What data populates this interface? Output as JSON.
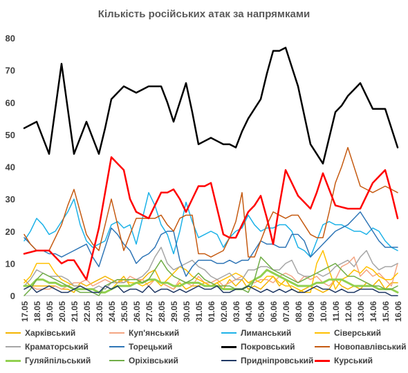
{
  "chart_data": {
    "type": "line",
    "title": "Кількість російських атак за напрямками",
    "ylim": [
      0,
      80
    ],
    "yticks": [
      0,
      10,
      20,
      30,
      40,
      50,
      60,
      70,
      80
    ],
    "grid": false,
    "legend_placement": "bottom",
    "categories": [
      "17.05",
      "18.05",
      "19.05",
      "20.05",
      "21.05",
      "22.05",
      "23.05",
      "24.05",
      "25.05",
      "26.05",
      "27.05",
      "28.05",
      "29.05",
      "30.05",
      "31.05",
      "01.06",
      "02.06",
      "03.06",
      "04.06",
      "05.06",
      "06.06",
      "07.06",
      "08.06",
      "09.06",
      "10.06",
      "11.06",
      "12.06",
      "13.06",
      "14.06",
      "15.06",
      "16.06"
    ],
    "x": [
      "17.05",
      "",
      "18.05",
      "",
      "19.05",
      "",
      "20.05",
      "",
      "21.05",
      "",
      "22.05",
      "",
      "23.05",
      "",
      "24.05",
      "",
      "25.05",
      "",
      "26.05",
      "",
      "27.05",
      "",
      "28.05",
      "",
      "29.05",
      "",
      "30.05",
      "",
      "31.05",
      "",
      "01.06",
      "",
      "02.06",
      "",
      "03.06",
      "",
      "04.06",
      "",
      "05.06",
      "",
      "06.06",
      "",
      "07.06",
      "",
      "08.06",
      "",
      "09.06",
      "",
      "10.06",
      "",
      "11.06",
      "",
      "12.06",
      "",
      "13.06",
      "",
      "14.06",
      "",
      "15.06",
      "",
      "16.06"
    ],
    "series": [
      {
        "name": "Харківський",
        "color": "#F4B400",
        "width": 1.5,
        "values": [
          5,
          3,
          3,
          3,
          3,
          3,
          2,
          2,
          1,
          4,
          3,
          4,
          5,
          6,
          5,
          4,
          6,
          3,
          4,
          5,
          7,
          8,
          4,
          3,
          2,
          4,
          2,
          3,
          3,
          4,
          3,
          4,
          2,
          5,
          3,
          5,
          2,
          3,
          2,
          4,
          6,
          3,
          5,
          2,
          1,
          2,
          3,
          2,
          1,
          2,
          5,
          3,
          2,
          3,
          2,
          4,
          3,
          5,
          2,
          4,
          4
        ]
      },
      {
        "name": "Куп'янський",
        "color": "#F4A582",
        "width": 1.5,
        "values": [
          3,
          3,
          2,
          2,
          2,
          3,
          2,
          3,
          4,
          4,
          5,
          3,
          4,
          5,
          4,
          5,
          4,
          6,
          5,
          5,
          3,
          5,
          4,
          3,
          2,
          5,
          4,
          3,
          6,
          4,
          4,
          5,
          3,
          4,
          5,
          6,
          4,
          4,
          5,
          5,
          4,
          6,
          7,
          6,
          4,
          6,
          5,
          6,
          4,
          3,
          5,
          9,
          10,
          12,
          6,
          8,
          6,
          7,
          5,
          3,
          10
        ]
      },
      {
        "name": "Лиманський",
        "color": "#1CB2E8",
        "width": 1.5,
        "values": [
          17,
          20,
          24,
          22,
          19,
          20,
          23,
          26,
          30,
          22,
          17,
          15,
          16,
          17,
          22,
          23,
          21,
          22,
          16,
          24,
          32,
          28,
          22,
          19,
          13,
          20,
          29,
          23,
          18,
          19,
          20,
          19,
          15,
          18,
          20,
          21,
          25,
          22,
          20,
          21,
          21,
          22,
          22,
          20,
          15,
          14,
          12,
          17,
          22,
          23,
          22,
          22,
          21,
          20,
          20,
          19,
          21,
          20,
          17,
          15,
          14
        ]
      },
      {
        "name": "Сіверський",
        "color": "#FFC000",
        "width": 1.5,
        "values": [
          4,
          6,
          10,
          10,
          10,
          7,
          5,
          4,
          3,
          3,
          2,
          2,
          1,
          1,
          2,
          4,
          5,
          4,
          4,
          3,
          4,
          5,
          3,
          5,
          7,
          9,
          8,
          6,
          5,
          4,
          3,
          4,
          5,
          6,
          7,
          6,
          4,
          5,
          4,
          6,
          6,
          4,
          3,
          3,
          2,
          1,
          1,
          10,
          14,
          8,
          2,
          5,
          6,
          8,
          7,
          9,
          8,
          6,
          5,
          5,
          7
        ]
      },
      {
        "name": "Краматорський",
        "color": "#A6A6A6",
        "width": 1.5,
        "values": [
          3,
          5,
          8,
          7,
          6,
          6,
          6,
          5,
          3,
          3,
          2,
          2,
          3,
          2,
          4,
          4,
          4,
          5,
          5,
          6,
          8,
          12,
          15,
          10,
          8,
          9,
          10,
          11,
          9,
          8,
          6,
          5,
          6,
          7,
          5,
          5,
          8,
          8,
          9,
          9,
          8,
          8,
          10,
          11,
          7,
          6,
          6,
          7,
          6,
          7,
          9,
          10,
          11,
          9,
          12,
          14,
          10,
          8,
          9,
          9,
          10
        ]
      },
      {
        "name": "Торецький",
        "color": "#2E75B6",
        "width": 1.5,
        "values": [
          18,
          16,
          14,
          14,
          13,
          13,
          12,
          13,
          14,
          15,
          16,
          12,
          9,
          15,
          21,
          19,
          16,
          14,
          10,
          12,
          13,
          15,
          19,
          20,
          20,
          11,
          6,
          9,
          11,
          11,
          11,
          10,
          10,
          11,
          10,
          11,
          11,
          14,
          17,
          16,
          16,
          15,
          15,
          19,
          19,
          17,
          12,
          14,
          16,
          18,
          20,
          21,
          22,
          24,
          26,
          23,
          20,
          17,
          15,
          15,
          15
        ]
      },
      {
        "name": "Покровський",
        "color": "#000000",
        "width": 2.5,
        "values": [
          52,
          53,
          54,
          49,
          44,
          58,
          72,
          58,
          44,
          49,
          54,
          49,
          44,
          52,
          61,
          63,
          65,
          64,
          63,
          64,
          65,
          65,
          65,
          60,
          54,
          60,
          66,
          57,
          47,
          48,
          49,
          48,
          47,
          47,
          46,
          51,
          55,
          58,
          61,
          69,
          76,
          76,
          77,
          71,
          65,
          56,
          47,
          44,
          41,
          49,
          57,
          59,
          62,
          64,
          66,
          62,
          58,
          58,
          58,
          52,
          46
        ]
      },
      {
        "name": "Новопавлівський",
        "color": "#C55A11",
        "width": 1.5,
        "values": [
          19,
          16,
          14,
          14,
          14,
          18,
          22,
          28,
          33,
          26,
          19,
          16,
          14,
          22,
          30,
          22,
          14,
          19,
          24,
          24,
          24,
          24,
          25,
          22,
          20,
          24,
          25,
          25,
          13,
          13,
          12,
          13,
          14,
          18,
          23,
          32,
          12,
          12,
          17,
          22,
          26,
          25,
          24,
          25,
          25,
          22,
          19,
          18,
          18,
          26,
          35,
          40,
          46,
          40,
          34,
          33,
          32,
          33,
          34,
          33,
          32
        ]
      },
      {
        "name": "Гуляйпільський",
        "color": "#92D050",
        "width": 3,
        "values": [
          3,
          3,
          5,
          5,
          4,
          4,
          3,
          3,
          2,
          2,
          2,
          2,
          1,
          1,
          2,
          3,
          3,
          3,
          4,
          4,
          5,
          5,
          4,
          4,
          3,
          3,
          4,
          4,
          4,
          3,
          3,
          3,
          2,
          2,
          2,
          2,
          3,
          5,
          6,
          8,
          7,
          6,
          5,
          4,
          3,
          3,
          3,
          4,
          4,
          5,
          5,
          5,
          4,
          3,
          3,
          3,
          3,
          2,
          2,
          2,
          1
        ]
      },
      {
        "name": "Оріхівський",
        "color": "#70AD47",
        "width": 1.5,
        "values": [
          0,
          2,
          5,
          7,
          6,
          5,
          4,
          3,
          2,
          1,
          1,
          1,
          0,
          3,
          4,
          5,
          5,
          5,
          5,
          4,
          5,
          8,
          11,
          8,
          6,
          5,
          4,
          5,
          7,
          5,
          4,
          3,
          3,
          3,
          2,
          2,
          1,
          5,
          12,
          10,
          8,
          7,
          6,
          5,
          4,
          5,
          6,
          7,
          8,
          9,
          10,
          8,
          6,
          6,
          5,
          4,
          3,
          3,
          2,
          2,
          3
        ]
      },
      {
        "name": "Придніпровський",
        "color": "#1F3864",
        "width": 1.5,
        "values": [
          2,
          3,
          1,
          2,
          3,
          2,
          1,
          1,
          2,
          3,
          2,
          1,
          1,
          3,
          2,
          3,
          1,
          2,
          2,
          1,
          3,
          1,
          2,
          2,
          1,
          2,
          1,
          2,
          3,
          2,
          2,
          3,
          1,
          1,
          2,
          2,
          3,
          2,
          1,
          2,
          1,
          2,
          1,
          2,
          1,
          1,
          2,
          3,
          2,
          2,
          1,
          2,
          1,
          1,
          2,
          2,
          2,
          1,
          1,
          0,
          0
        ]
      },
      {
        "name": "Курський",
        "color": "#FF0000",
        "width": 2.5,
        "values": [
          13,
          13.5,
          14,
          14,
          14,
          12,
          10,
          11,
          11,
          8,
          5,
          13,
          21,
          32,
          43,
          41,
          39,
          30,
          26,
          25,
          24,
          28,
          32,
          32,
          33,
          30,
          26,
          30,
          34,
          34,
          35,
          27,
          19,
          18,
          18,
          22,
          26,
          28,
          31,
          24,
          16,
          28,
          39,
          35,
          31,
          29,
          27,
          32,
          38,
          33,
          28,
          27.5,
          27,
          27,
          27,
          31,
          35,
          37,
          39,
          32,
          24
        ]
      }
    ]
  },
  "legend": [
    {
      "label": "Харківський",
      "color": "#F4B400",
      "width": 1.5
    },
    {
      "label": "Куп'янський",
      "color": "#F4A582",
      "width": 1.5
    },
    {
      "label": "Лиманський",
      "color": "#1CB2E8",
      "width": 1.5
    },
    {
      "label": "Сіверський",
      "color": "#FFC000",
      "width": 1.5
    },
    {
      "label": "Краматорський",
      "color": "#A6A6A6",
      "width": 1.5
    },
    {
      "label": "Торецький",
      "color": "#2E75B6",
      "width": 1.5
    },
    {
      "label": "Покровський",
      "color": "#000000",
      "width": 2.5
    },
    {
      "label": "Новопавлівський",
      "color": "#C55A11",
      "width": 1.5
    },
    {
      "label": "Гуляйпільський",
      "color": "#92D050",
      "width": 3
    },
    {
      "label": "Оріхівський",
      "color": "#70AD47",
      "width": 1.5
    },
    {
      "label": "Придніпровський",
      "color": "#1F3864",
      "width": 1.5
    },
    {
      "label": "Курський",
      "color": "#FF0000",
      "width": 2.5
    }
  ]
}
